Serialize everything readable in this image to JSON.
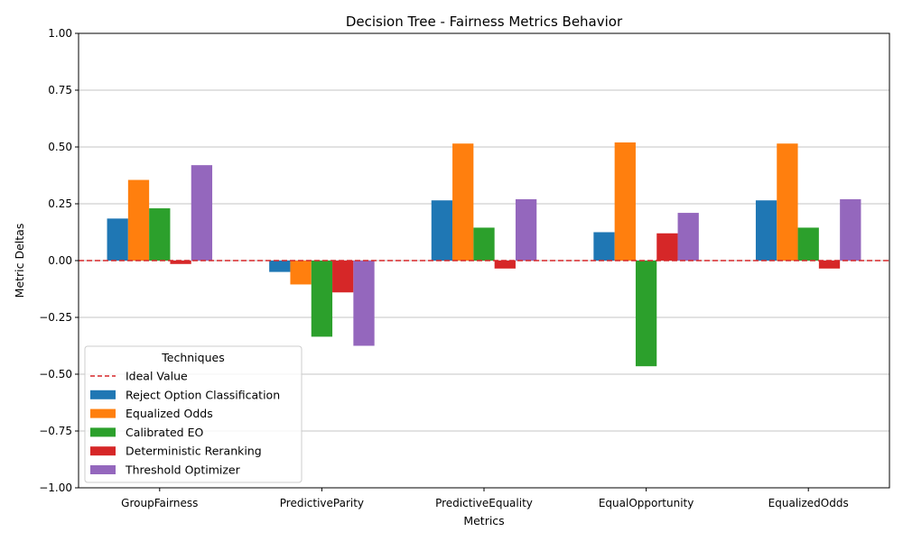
{
  "chart_data": {
    "type": "bar",
    "title": "Decision Tree - Fairness Metrics Behavior",
    "xlabel": "Metrics",
    "ylabel": "Metric Deltas",
    "ylim": [
      -1.0,
      1.0
    ],
    "yticks": [
      "−1.00",
      "−0.75",
      "−0.50",
      "−0.25",
      "0.00",
      "0.25",
      "0.50",
      "0.75",
      "1.00"
    ],
    "ytick_values": [
      -1.0,
      -0.75,
      -0.5,
      -0.25,
      0.0,
      0.25,
      0.5,
      0.75,
      1.0
    ],
    "grid": "horizontal",
    "categories": [
      "GroupFairness",
      "PredictiveParity",
      "PredictiveEquality",
      "EqualOpportunity",
      "EqualizedOdds"
    ],
    "ideal_line": {
      "name": "Ideal Value",
      "value": 0.0,
      "color": "#d62728"
    },
    "legend": {
      "title": "Techniques",
      "placement": "lower-left"
    },
    "series": [
      {
        "name": "Reject Option Classification",
        "color": "#1f77b4",
        "values": [
          0.185,
          -0.05,
          0.265,
          0.125,
          0.265
        ]
      },
      {
        "name": "Equalized Odds",
        "color": "#ff7f0e",
        "values": [
          0.355,
          -0.105,
          0.515,
          0.52,
          0.515
        ]
      },
      {
        "name": "Calibrated EO",
        "color": "#2ca02c",
        "values": [
          0.23,
          -0.335,
          0.145,
          -0.465,
          0.145
        ]
      },
      {
        "name": "Deterministic Reranking",
        "color": "#d62728",
        "values": [
          -0.015,
          -0.14,
          -0.035,
          0.12,
          -0.035
        ]
      },
      {
        "name": "Threshold Optimizer",
        "color": "#9467bd",
        "values": [
          0.42,
          -0.375,
          0.27,
          0.21,
          0.27
        ]
      }
    ]
  }
}
